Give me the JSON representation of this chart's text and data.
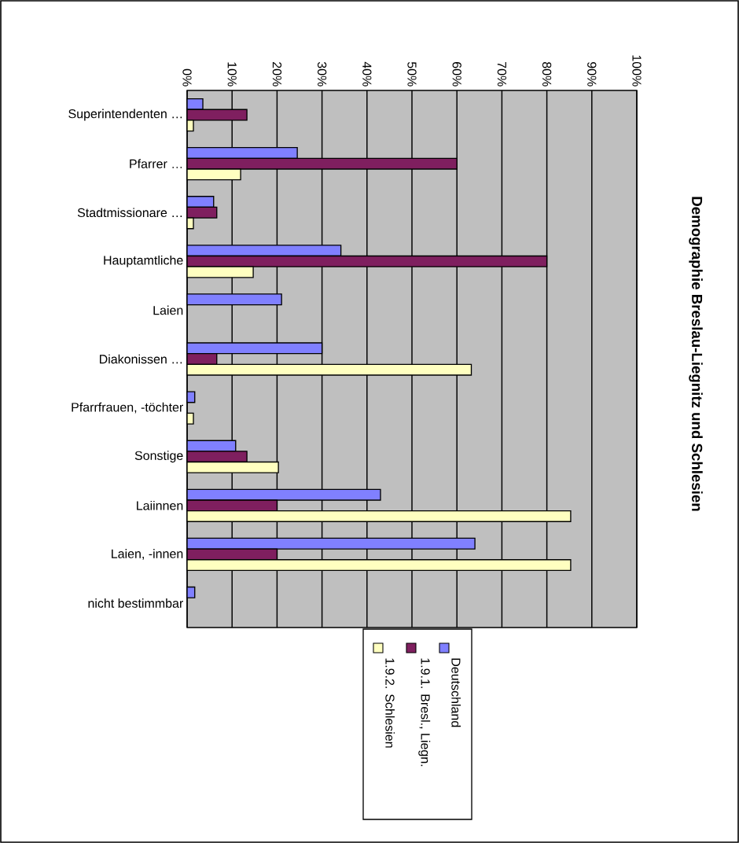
{
  "chart_data": {
    "type": "bar",
    "orientation": "horizontal",
    "title": "Demographie Breslau-Liegnitz und Schlesien",
    "categories": [
      "Superintendenten …",
      "Pfarrer …",
      "Stadtmissionare …",
      "Hauptamtliche",
      "Laien",
      "Diakonissen …",
      "Pfarrfrauen, -töchter",
      "Sonstige",
      "Laiinnen",
      "Laien, -innen",
      "nicht bestimmbar"
    ],
    "series": [
      {
        "name": "Deutschland",
        "color": "#8080ff",
        "values": [
          3.5,
          24.5,
          5.9,
          34.2,
          21.0,
          30.0,
          1.7,
          10.8,
          43.0,
          64.0,
          1.7
        ]
      },
      {
        "name": "1.9.1. Bresl., Liegn.",
        "color": "#7f1f5f",
        "values": [
          13.3,
          60.0,
          6.6,
          80.0,
          null,
          6.6,
          null,
          13.3,
          20.0,
          20.0,
          null
        ]
      },
      {
        "name": "1.9.2. Schlesien",
        "color": "#ffffc0",
        "values": [
          1.4,
          11.9,
          1.4,
          14.7,
          null,
          63.2,
          1.4,
          20.3,
          85.3,
          85.3,
          null
        ]
      }
    ],
    "xlim": [
      0,
      100
    ],
    "xticks": [
      {
        "value": 0,
        "label": "0%"
      },
      {
        "value": 10,
        "label": "10%"
      },
      {
        "value": 20,
        "label": "20%"
      },
      {
        "value": 30,
        "label": "30%"
      },
      {
        "value": 40,
        "label": "40%"
      },
      {
        "value": 50,
        "label": "50%"
      },
      {
        "value": 60,
        "label": "60%"
      },
      {
        "value": 70,
        "label": "70%"
      },
      {
        "value": 80,
        "label": "80%"
      },
      {
        "value": 90,
        "label": "90%"
      },
      {
        "value": 100,
        "label": "100%"
      }
    ],
    "grid": "x",
    "legend": "bottom"
  }
}
